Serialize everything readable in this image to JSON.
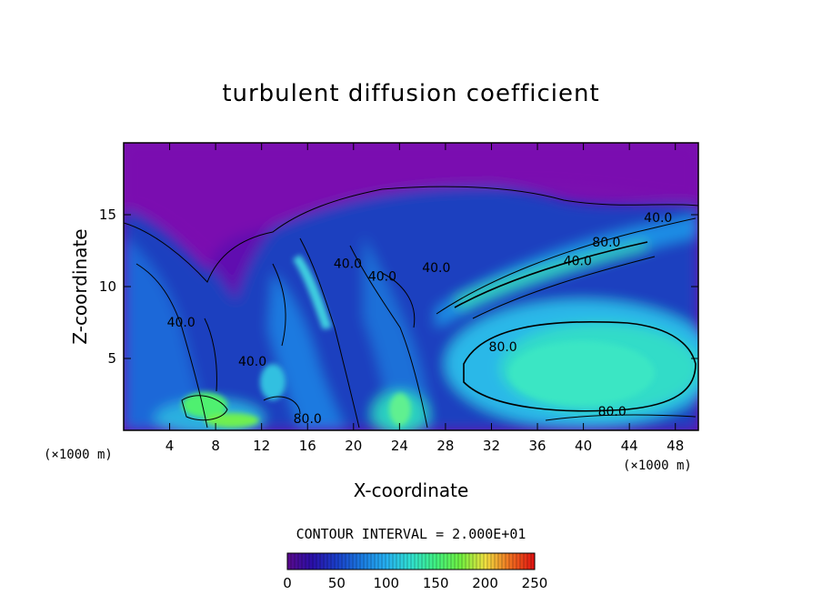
{
  "chart_data": {
    "type": "heatmap",
    "title": "turbulent diffusion coefficient",
    "xlabel": "X-coordinate",
    "ylabel": "Z-coordinate",
    "x_unit": "(×1000 m)",
    "x_unit_right": "(×1000 m)",
    "xlim": [
      0,
      50
    ],
    "ylim": [
      0,
      20
    ],
    "x_ticks": [
      4,
      8,
      12,
      16,
      20,
      24,
      28,
      32,
      36,
      40,
      44,
      48
    ],
    "y_ticks": [
      5,
      10,
      15
    ],
    "contour_interval_text": "CONTOUR INTERVAL = 2.000E+01",
    "contour_labels": [
      {
        "text": "80.0",
        "x": 16,
        "y": 0.5
      },
      {
        "text": "40.0",
        "x": 19.5,
        "y": 11.3
      },
      {
        "text": "40.0",
        "x": 22.5,
        "y": 10.4
      },
      {
        "text": "40.0",
        "x": 27.2,
        "y": 11.0
      },
      {
        "text": "80.0",
        "x": 33.0,
        "y": 5.5
      },
      {
        "text": "80.0",
        "x": 42.0,
        "y": 12.8
      },
      {
        "text": "40.0",
        "x": 39.5,
        "y": 11.5
      },
      {
        "text": "40.0",
        "x": 46.5,
        "y": 14.5
      },
      {
        "text": "80.0",
        "x": 42.5,
        "y": 1.0
      },
      {
        "text": "40.0",
        "x": 11.2,
        "y": 4.5
      },
      {
        "text": "40.0",
        "x": 5.0,
        "y": 7.2
      }
    ],
    "colorbar": {
      "min": 0,
      "max": 250,
      "ticks": [
        0,
        50,
        100,
        150,
        200,
        250
      ]
    },
    "colormap": [
      "#5a0a8c",
      "#2a0fa8",
      "#1a3ec8",
      "#1a7ae0",
      "#26b0f0",
      "#30e0d0",
      "#40f080",
      "#70f040",
      "#f0e040",
      "#f07020",
      "#e01010"
    ]
  }
}
